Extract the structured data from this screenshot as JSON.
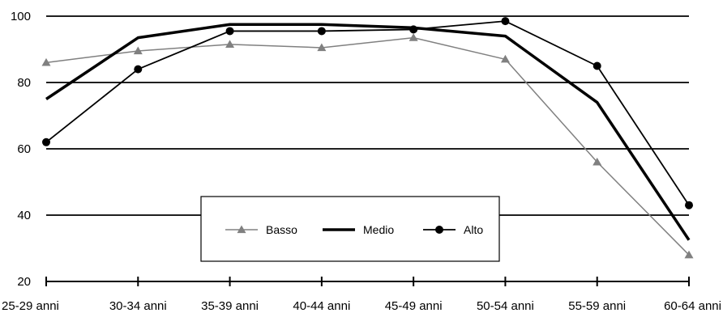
{
  "chart_data": {
    "type": "line",
    "title": "",
    "xlabel": "",
    "ylabel": "",
    "categories": [
      "25-29 anni",
      "30-34 anni",
      "35-39 anni",
      "40-44 anni",
      "45-49 anni",
      "50-54 anni",
      "55-59 anni",
      "60-64 anni"
    ],
    "ylim": [
      20,
      100
    ],
    "yticks": [
      20,
      40,
      60,
      80,
      100
    ],
    "grid": "horizontal",
    "legend": "center-bottom",
    "series": [
      {
        "name": "Basso",
        "values": [
          86,
          89.5,
          91.5,
          90.5,
          93.5,
          87,
          56,
          28
        ],
        "color": "#808080",
        "marker": "triangle"
      },
      {
        "name": "Medio",
        "values": [
          75,
          93.5,
          97.5,
          97.5,
          96.5,
          94,
          74,
          32.5
        ],
        "color": "#000000",
        "marker": "none"
      },
      {
        "name": "Alto",
        "values": [
          62,
          84,
          95.5,
          95.5,
          96,
          98.5,
          85,
          43
        ],
        "color": "#000000",
        "marker": "circle"
      }
    ]
  }
}
